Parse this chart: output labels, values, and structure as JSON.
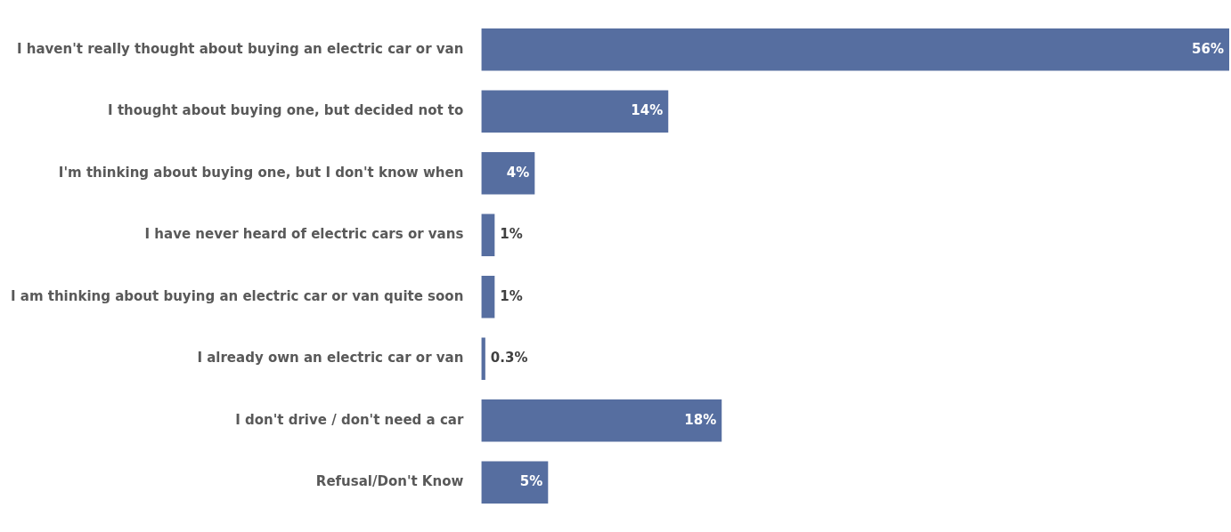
{
  "chart_data": {
    "type": "bar",
    "orientation": "horizontal",
    "categories": [
      "I haven't really thought about buying an electric car or van",
      "I thought about buying one, but decided not to",
      "I'm thinking about buying one, but I don't know when",
      "I have never heard of electric cars or vans",
      "I am thinking about buying an electric car or van quite soon",
      "I already own an electric car or van",
      "I don't drive / don't need a car",
      "Refusal/Don't Know"
    ],
    "values": [
      56,
      14,
      4,
      1,
      1,
      0.3,
      18,
      5
    ],
    "color": "#566ea0",
    "value_labels": [
      "56%",
      "14%",
      "4%",
      "1%",
      "1%",
      "0.3%",
      "18%",
      "5%"
    ],
    "legend": false
  }
}
